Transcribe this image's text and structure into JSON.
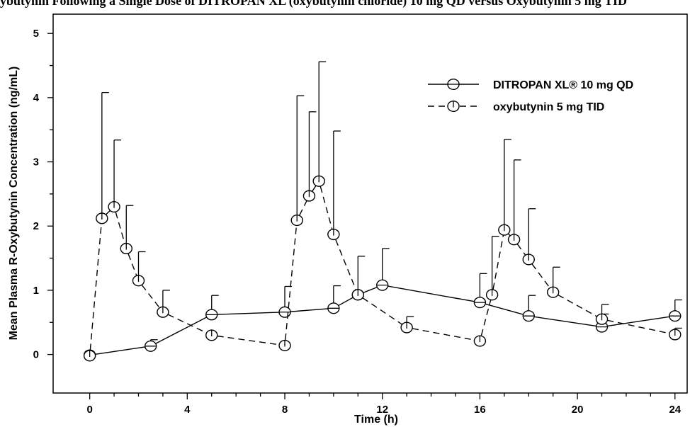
{
  "figure": {
    "partial_caption": "ybutynin Following a Single Dose of DITROPAN XL (oxybutynin chloride) 10 mg QD versus Oxybutynin 5 mg TID"
  },
  "chart_data": {
    "type": "line",
    "xlabel": "Time (h)",
    "ylabel": "Mean Plasma R-Oxybutynin Concentration (ng/mL)",
    "xlim": [
      -1.5,
      24.5
    ],
    "ylim": [
      -0.6,
      5.3
    ],
    "xticks": [
      0,
      4,
      8,
      12,
      16,
      20,
      24
    ],
    "yticks": [
      0,
      1,
      2,
      3,
      4,
      5
    ],
    "grid": false,
    "legend_position": "top-right",
    "series": [
      {
        "name": "DITROPAN XL® 10 mg QD",
        "line_style": "solid",
        "marker": "circle-with-horizontal-bar",
        "points": [
          {
            "x": 0,
            "y": -0.01,
            "err": 0
          },
          {
            "x": 2.5,
            "y": 0.13,
            "err": 0.1
          },
          {
            "x": 5,
            "y": 0.62,
            "err": 0.3
          },
          {
            "x": 8,
            "y": 0.66,
            "err": 0.4
          },
          {
            "x": 10,
            "y": 0.72,
            "err": 0.35
          },
          {
            "x": 11,
            "y": 0.93,
            "err": 0.6
          },
          {
            "x": 12,
            "y": 1.08,
            "err": 0.57
          },
          {
            "x": 16,
            "y": 0.81,
            "err": 0.45
          },
          {
            "x": 18,
            "y": 0.6,
            "err": 0.32
          },
          {
            "x": 21,
            "y": 0.43,
            "err": 0.2
          },
          {
            "x": 24,
            "y": 0.6,
            "err": 0.25
          }
        ]
      },
      {
        "name": "oxybutynin 5 mg TID",
        "line_style": "dashed",
        "marker": "circle-with-vertical-bar",
        "points": [
          {
            "x": 0,
            "y": -0.02,
            "err": 0
          },
          {
            "x": 0.5,
            "y": 2.12,
            "err": 1.96
          },
          {
            "x": 1,
            "y": 2.3,
            "err": 1.04
          },
          {
            "x": 1.5,
            "y": 1.65,
            "err": 0.67
          },
          {
            "x": 2,
            "y": 1.15,
            "err": 0.45
          },
          {
            "x": 3,
            "y": 0.66,
            "err": 0.34
          },
          {
            "x": 5,
            "y": 0.3,
            "err": 0
          },
          {
            "x": 8,
            "y": 0.14,
            "err": 0
          },
          {
            "x": 8.5,
            "y": 2.09,
            "err": 1.94
          },
          {
            "x": 9,
            "y": 2.47,
            "err": 1.31
          },
          {
            "x": 9.4,
            "y": 2.7,
            "err": 1.86
          },
          {
            "x": 10,
            "y": 1.87,
            "err": 1.61
          },
          {
            "x": 11,
            "y": 0.93,
            "err": 0
          },
          {
            "x": 13,
            "y": 0.42,
            "err": 0.17
          },
          {
            "x": 16,
            "y": 0.21,
            "err": 0
          },
          {
            "x": 16.5,
            "y": 0.93,
            "err": 0.91
          },
          {
            "x": 17,
            "y": 1.94,
            "err": 1.41
          },
          {
            "x": 17.4,
            "y": 1.79,
            "err": 1.24
          },
          {
            "x": 18,
            "y": 1.48,
            "err": 0.79
          },
          {
            "x": 19,
            "y": 0.97,
            "err": 0.39
          },
          {
            "x": 21,
            "y": 0.55,
            "err": 0.23
          },
          {
            "x": 24,
            "y": 0.31,
            "err": 0.1
          }
        ]
      }
    ]
  }
}
